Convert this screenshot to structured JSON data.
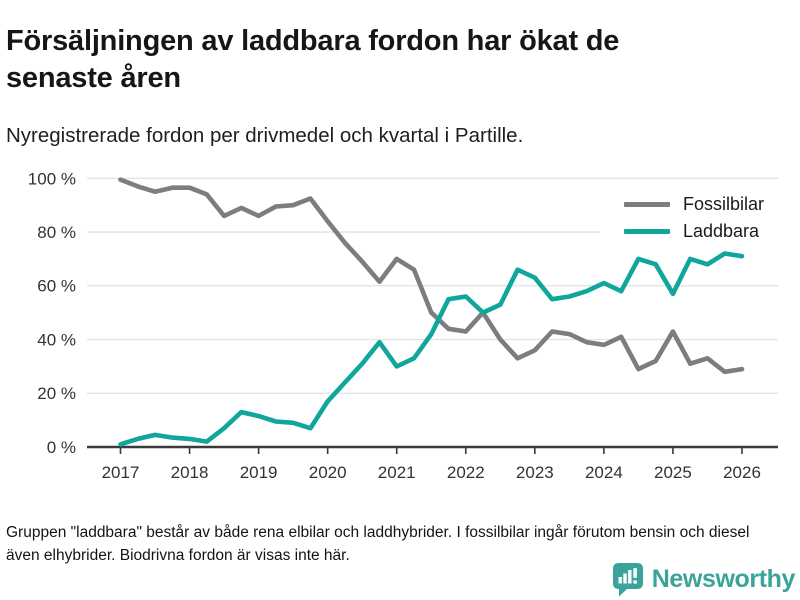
{
  "chart_data": {
    "type": "line",
    "title": "Försäljningen av laddbara fordon har ökat de senaste åren",
    "subtitle": "Nyregistrerade fordon per drivmedel och kvartal i Partille.",
    "footnote": "Gruppen \"laddbara\" består av både rena elbilar och laddhybrider. I fossilbilar ingår förutom bensin och diesel även elhybrider. Biodrivna fordon är visas inte här.",
    "unit": "%",
    "ylim": [
      0,
      100
    ],
    "y_ticks": [
      0,
      20,
      40,
      60,
      80,
      100
    ],
    "y_tick_labels": [
      "0 %",
      "20 %",
      "40 %",
      "60 %",
      "80 %",
      "100 %"
    ],
    "x_year_ticks": [
      "2017",
      "2018",
      "2019",
      "2020",
      "2021",
      "2022",
      "2023",
      "2024",
      "2025",
      "2026"
    ],
    "grid": true,
    "legend_position": "top-right",
    "x": [
      "2017-Q1",
      "2017-Q2",
      "2017-Q3",
      "2017-Q4",
      "2018-Q1",
      "2018-Q2",
      "2018-Q3",
      "2018-Q4",
      "2019-Q1",
      "2019-Q2",
      "2019-Q3",
      "2019-Q4",
      "2020-Q1",
      "2020-Q2",
      "2020-Q3",
      "2020-Q4",
      "2021-Q1",
      "2021-Q2",
      "2021-Q3",
      "2021-Q4",
      "2022-Q1",
      "2022-Q2",
      "2022-Q3",
      "2022-Q4",
      "2023-Q1",
      "2023-Q2",
      "2023-Q3",
      "2023-Q4",
      "2024-Q1",
      "2024-Q2",
      "2024-Q3",
      "2024-Q4",
      "2025-Q1",
      "2025-Q2",
      "2025-Q3",
      "2025-Q4",
      "2026-Q1"
    ],
    "series": [
      {
        "name": "Fossilbilar",
        "color": "#7c7c81",
        "values": [
          99.5,
          97,
          95,
          96.5,
          96.5,
          94,
          86,
          89,
          86,
          89.5,
          90,
          92.5,
          84,
          76,
          69,
          61.5,
          70,
          66,
          50,
          44,
          43,
          50,
          40,
          33,
          36,
          43,
          42,
          39,
          38,
          41,
          29,
          32,
          43,
          31,
          33,
          28,
          29
        ]
      },
      {
        "name": "Laddbara",
        "color": "#10a69b",
        "values": [
          1,
          3,
          4.5,
          3.5,
          3,
          2,
          7,
          13,
          11.5,
          9.5,
          9,
          7,
          17,
          24,
          31,
          39,
          30,
          33,
          42,
          55,
          56,
          50,
          53,
          66,
          63,
          55,
          56,
          58,
          61,
          58,
          70,
          68,
          57,
          70,
          68,
          72,
          71
        ]
      }
    ],
    "axis_color": "#3a3a3a",
    "grid_color": "#e2e2e2"
  },
  "branding": {
    "name": "Newsworthy",
    "color": "#3aa39a",
    "icon": "newsworthy-speech-bubble-bar-chart-icon"
  }
}
